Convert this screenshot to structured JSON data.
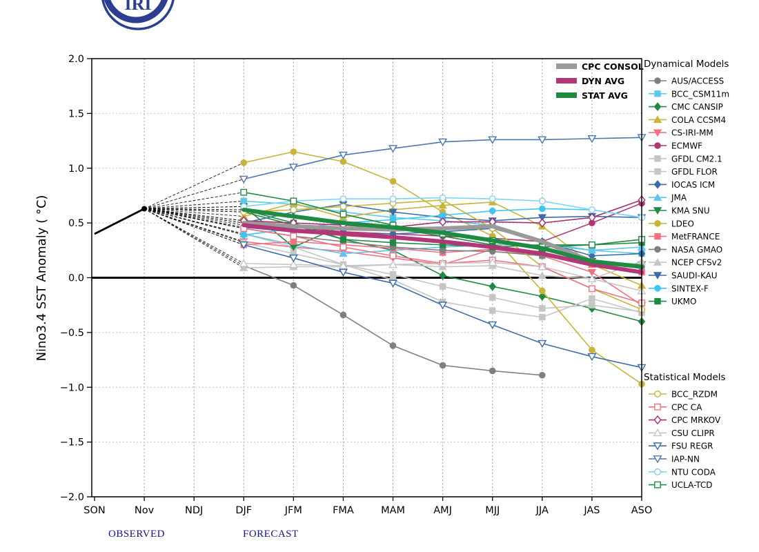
{
  "logo": {
    "text": "IRI",
    "color": "#2c3e8f"
  },
  "page": {
    "observed_label": "OBSERVED",
    "forecast_label": "FORECAST",
    "phase_label_color": "#14148c"
  },
  "chart_data": {
    "type": "line",
    "title": "",
    "xlabel": "",
    "ylabel": "Nino3.4 SST Anomaly ( °C)",
    "ylim": [
      -2.0,
      2.0
    ],
    "ytick_step": 0.5,
    "grid": "dashed",
    "categories": [
      "SON",
      "Nov",
      "NDJ",
      "DJF",
      "JFM",
      "FMA",
      "MAM",
      "AMJ",
      "MJJ",
      "JJA",
      "JAS",
      "ASO"
    ],
    "forecast_start_index": 3,
    "observed": {
      "categories": [
        "SON",
        "Nov"
      ],
      "values": [
        0.4,
        0.63
      ],
      "color": "#000000"
    },
    "fan_origin": {
      "category": "Nov",
      "value": 0.63
    },
    "mean_series": [
      {
        "name": "CPC CONSOL",
        "color": "#9a9a9a",
        "values": [
          0.5,
          0.47,
          0.45,
          0.44,
          0.45,
          0.47,
          0.33,
          0.15,
          0.1
        ]
      },
      {
        "name": "DYN AVG",
        "color": "#b13778",
        "values": [
          0.48,
          0.43,
          0.4,
          0.37,
          0.33,
          0.28,
          0.22,
          0.12,
          0.05
        ]
      },
      {
        "name": "STAT AVG",
        "color": "#1f8a41",
        "values": [
          0.62,
          0.56,
          0.5,
          0.46,
          0.41,
          0.34,
          0.27,
          0.15,
          0.1
        ]
      }
    ],
    "dynamical_models": {
      "title": "Dynamical Models",
      "marker_fill": "filled",
      "series": [
        {
          "name": "AUS/ACCESS",
          "color": "#7f7f7f",
          "marker": "circle",
          "values": [
            0.11,
            -0.07,
            -0.34,
            -0.62,
            -0.8,
            -0.85,
            -0.89,
            null,
            null
          ]
        },
        {
          "name": "BCC_CSM11m",
          "color": "#5ec8ed",
          "marker": "square",
          "values": [
            0.7,
            0.67,
            0.6,
            0.55,
            0.52,
            0.48,
            0.32,
            0.25,
            0.22
          ]
        },
        {
          "name": "CMC CANSIP",
          "color": "#1f8a41",
          "marker": "diamond",
          "values": [
            0.6,
            0.48,
            0.35,
            0.25,
            0.02,
            -0.08,
            -0.17,
            -0.28,
            -0.4
          ]
        },
        {
          "name": "COLA CCSM4",
          "color": "#c9b43a",
          "marker": "triangle-up",
          "values": [
            0.56,
            0.68,
            0.55,
            0.62,
            0.66,
            0.69,
            0.47,
            0.12,
            -0.07
          ]
        },
        {
          "name": "CS-IRI-MM",
          "color": "#ef7183",
          "marker": "triangle-down",
          "values": [
            0.33,
            0.28,
            0.24,
            0.18,
            0.12,
            0.26,
            0.2,
            0.05,
            -0.25
          ]
        },
        {
          "name": "ECMWF",
          "color": "#b13778",
          "marker": "circle",
          "values": [
            0.52,
            0.46,
            0.42,
            0.4,
            0.38,
            0.36,
            0.33,
            0.5,
            0.68
          ]
        },
        {
          "name": "GFDL CM2.1",
          "color": "#c5c5c5",
          "marker": "square",
          "values": [
            0.4,
            0.28,
            0.12,
            -0.02,
            -0.22,
            -0.3,
            -0.36,
            -0.19,
            -0.32
          ]
        },
        {
          "name": "GFDL FLOR",
          "color": "#c5c5c5",
          "marker": "square",
          "values": [
            0.32,
            0.22,
            0.12,
            0.03,
            -0.08,
            -0.18,
            -0.28,
            -0.25,
            -0.31
          ]
        },
        {
          "name": "IOCAS ICM",
          "color": "#3c6ca8",
          "marker": "diamond",
          "values": [
            0.46,
            0.42,
            0.4,
            0.4,
            0.42,
            0.45,
            0.33,
            0.2,
            0.22
          ]
        },
        {
          "name": "JMA",
          "color": "#63c3ea",
          "marker": "triangle-up",
          "values": [
            0.4,
            0.3,
            0.22,
            0.25,
            0.28,
            0.3,
            0.3,
            0.25,
            0.28
          ]
        },
        {
          "name": "KMA SNU",
          "color": "#1f8a41",
          "marker": "triangle-down",
          "values": [
            0.65,
            0.28,
            0.48,
            0.45,
            0.38,
            0.3,
            0.22,
            0.15,
            0.12
          ]
        },
        {
          "name": "LDEO",
          "color": "#c9b43a",
          "marker": "circle",
          "values": [
            1.05,
            1.15,
            1.06,
            0.88,
            0.6,
            0.38,
            -0.12,
            -0.66,
            -0.97
          ]
        },
        {
          "name": "MetFRANCE",
          "color": "#ef7183",
          "marker": "square",
          "values": [
            0.3,
            0.33,
            0.3,
            0.27,
            0.23,
            0.26,
            0.2,
            0.12,
            0.05
          ]
        },
        {
          "name": "NASA GMAO",
          "color": "#7f7f7f",
          "marker": "circle",
          "values": [
            0.45,
            0.38,
            0.33,
            0.28,
            0.25,
            0.24,
            0.2,
            0.15,
            0.1
          ]
        },
        {
          "name": "NCEP CFSv2",
          "color": "#c5c5c5",
          "marker": "triangle-up",
          "values": [
            0.09,
            0.1,
            0.1,
            0.12,
            0.1,
            0.11,
            0.02,
            -0.01,
            0.15
          ]
        },
        {
          "name": "SAUDI-KAU",
          "color": "#3c6ca8",
          "marker": "triangle-down",
          "values": [
            0.5,
            0.6,
            0.67,
            0.6,
            0.55,
            0.52,
            0.55,
            0.56,
            0.55
          ]
        },
        {
          "name": "SINTEX-F",
          "color": "#3ec6f2",
          "marker": "circle",
          "values": [
            0.39,
            0.45,
            0.5,
            0.53,
            0.57,
            0.61,
            0.63,
            0.62,
            0.55
          ]
        },
        {
          "name": "UKMO",
          "color": "#1f8a41",
          "marker": "square",
          "values": [
            0.62,
            0.5,
            0.35,
            0.32,
            0.3,
            0.28,
            0.3,
            0.3,
            0.32
          ]
        }
      ]
    },
    "statistical_models": {
      "title": "Statistical Models",
      "marker_fill": "open",
      "series": [
        {
          "name": "BCC_RZDM",
          "color": "#c9b43a",
          "marker": "circle",
          "values": [
            0.6,
            0.62,
            0.65,
            0.68,
            0.71,
            0.45,
            0.1,
            -0.1,
            -0.29
          ]
        },
        {
          "name": "CPC CA",
          "color": "#ef7183",
          "marker": "square",
          "values": [
            0.45,
            0.38,
            0.28,
            0.2,
            0.13,
            0.16,
            0.1,
            -0.1,
            -0.23
          ]
        },
        {
          "name": "CPC MRKOV",
          "color": "#a82d6f",
          "marker": "diamond",
          "values": [
            0.52,
            0.5,
            0.48,
            0.46,
            0.51,
            0.51,
            0.5,
            0.55,
            0.71
          ]
        },
        {
          "name": "CSU CLIPR",
          "color": "#c5c5c5",
          "marker": "triangle-up",
          "values": [
            0.13,
            0.12,
            0.11,
            0.12,
            0.13,
            0.14,
            0.1,
            -0.01,
            -0.12
          ]
        },
        {
          "name": "FSU REGR",
          "color": "#3c6ca8",
          "marker": "triangle-down",
          "values": [
            0.3,
            0.18,
            0.05,
            -0.05,
            -0.25,
            -0.43,
            -0.6,
            -0.72,
            -0.82
          ]
        },
        {
          "name": "IAP-NN",
          "color": "#4a77ae",
          "marker": "triangle-down",
          "values": [
            0.9,
            1.01,
            1.12,
            1.18,
            1.24,
            1.26,
            1.26,
            1.27,
            1.28
          ]
        },
        {
          "name": "NTU CODA",
          "color": "#7fd3f2",
          "marker": "circle",
          "values": [
            0.65,
            0.7,
            0.72,
            0.72,
            0.73,
            0.72,
            0.7,
            0.62,
            0.55
          ]
        },
        {
          "name": "UCLA-TCD",
          "color": "#1f8a41",
          "marker": "square",
          "values": [
            0.78,
            0.7,
            0.58,
            0.48,
            0.4,
            0.34,
            0.28,
            0.3,
            0.35
          ]
        }
      ]
    }
  }
}
